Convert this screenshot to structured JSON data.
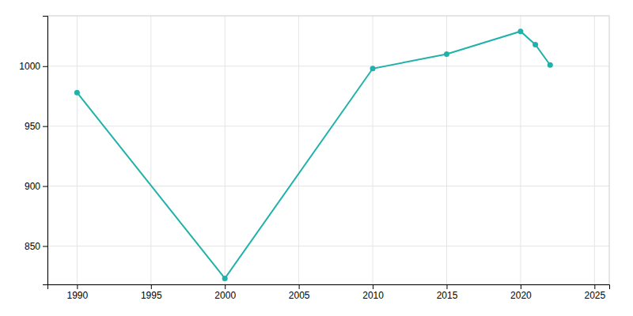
{
  "chart_data": {
    "type": "line",
    "x": [
      1990,
      2000,
      2010,
      2015,
      2020,
      2021,
      2022
    ],
    "values": [
      978,
      823,
      998,
      1010,
      1029,
      1018,
      1001
    ],
    "color": "#20B2AA",
    "marker": "circle",
    "xlim": [
      1988,
      2026
    ],
    "ylim": [
      818,
      1042
    ],
    "xticks": [
      1990,
      1995,
      2000,
      2005,
      2010,
      2015,
      2020,
      2025
    ],
    "yticks": [
      850,
      900,
      950,
      1000
    ],
    "grid": true
  }
}
